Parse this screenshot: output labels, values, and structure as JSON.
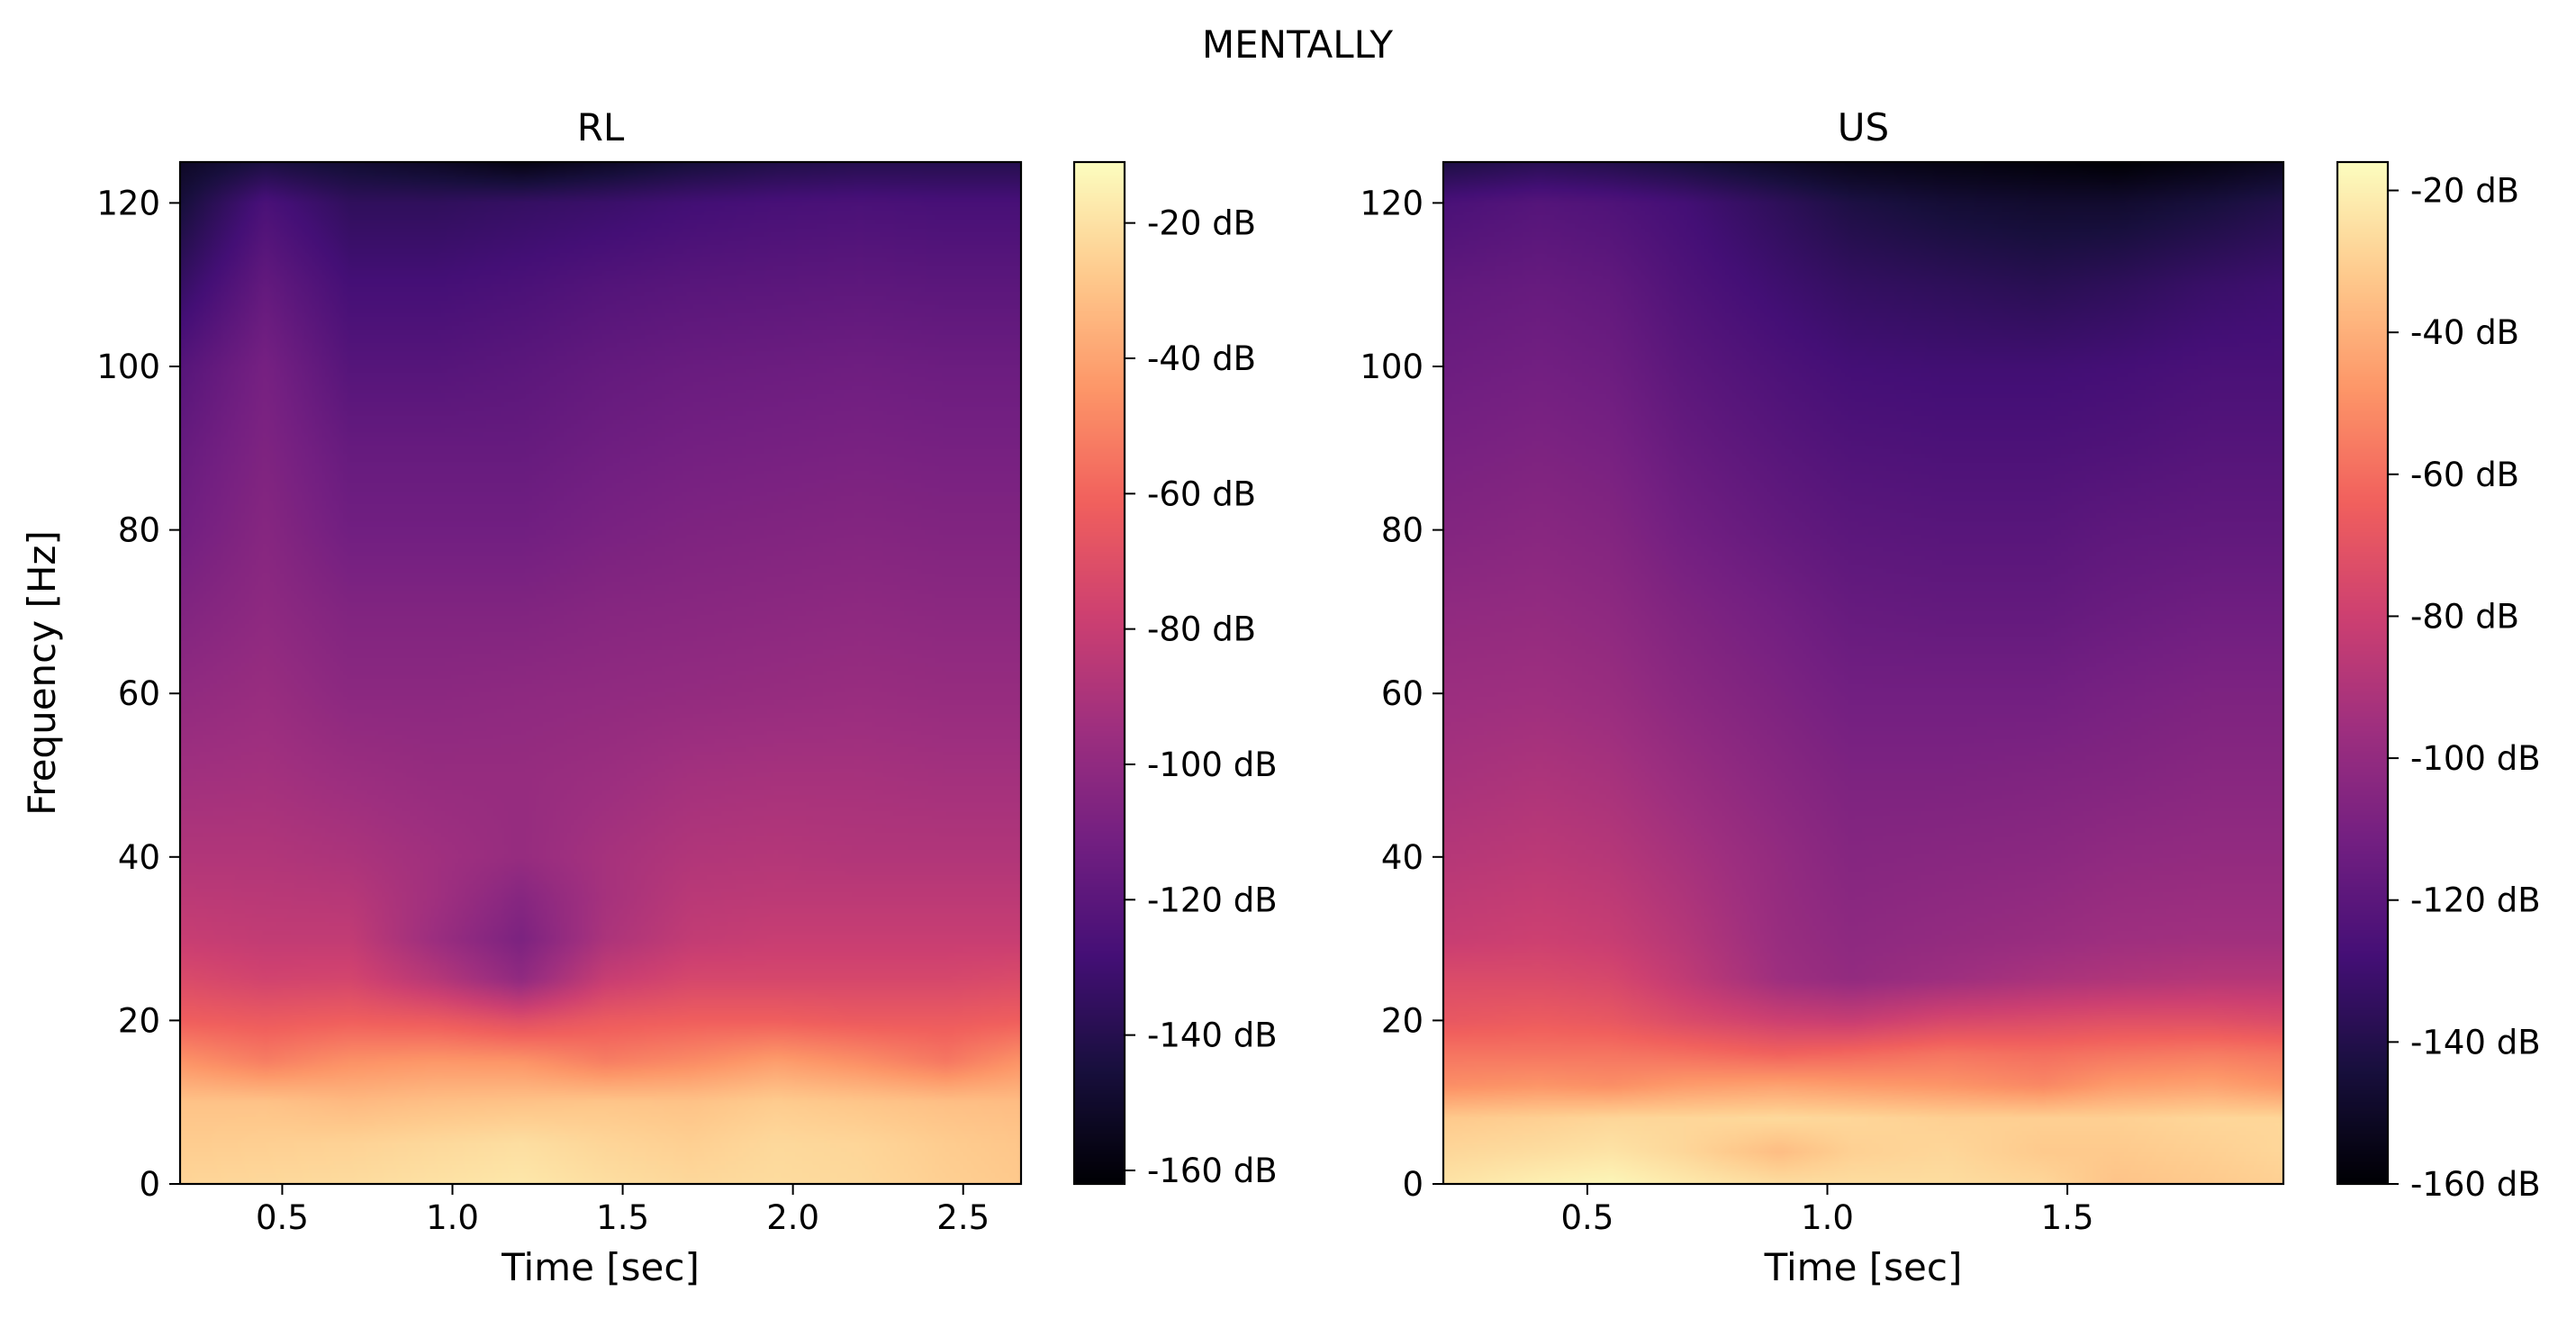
{
  "figure": {
    "suptitle": "MENTALLY"
  },
  "colormap": {
    "name": "magma",
    "stops": [
      "#000004",
      "#180f3d",
      "#440f76",
      "#721f81",
      "#9e2f7f",
      "#cd4071",
      "#f1605d",
      "#fd9668",
      "#feca8d",
      "#fcfdbf"
    ]
  },
  "chart_data": [
    {
      "type": "heatmap",
      "title": "RL",
      "xlabel": "Time [sec]",
      "ylabel": "Frequency [Hz]",
      "xlim": [
        0.2,
        2.67
      ],
      "ylim": [
        0,
        125
      ],
      "xticks": [
        0.5,
        1.0,
        1.5,
        2.0,
        2.5
      ],
      "xtick_labels": [
        "0.5",
        "1.0",
        "1.5",
        "2.0",
        "2.5"
      ],
      "yticks": [
        0,
        20,
        40,
        60,
        80,
        100,
        120
      ],
      "ytick_labels": [
        "0",
        "20",
        "40",
        "60",
        "80",
        "100",
        "120"
      ],
      "colorbar": {
        "vmin": -162,
        "vmax": -11,
        "ticks": [
          -20,
          -40,
          -60,
          -80,
          -100,
          -120,
          -140,
          -160
        ],
        "tick_labels": [
          "-20 dB",
          "-40 dB",
          "-60 dB",
          "-80 dB",
          "-100 dB",
          "-120 dB",
          "-140 dB",
          "-160 dB"
        ]
      },
      "time_bins": [
        0.2,
        0.45,
        0.7,
        0.95,
        1.2,
        1.45,
        1.7,
        1.95,
        2.2,
        2.45,
        2.67
      ],
      "freq_bins": [
        0,
        5,
        10,
        15,
        20,
        25,
        30,
        35,
        40,
        50,
        60,
        70,
        80,
        90,
        100,
        110,
        120,
        125
      ],
      "power_db": [
        [
          -24,
          -23,
          -22,
          -20,
          -18,
          -21,
          -23,
          -22,
          -23,
          -26,
          -28
        ],
        [
          -27,
          -26,
          -25,
          -23,
          -21,
          -24,
          -26,
          -23,
          -24,
          -27,
          -29
        ],
        [
          -30,
          -30,
          -33,
          -31,
          -30,
          -29,
          -30,
          -27,
          -29,
          -31,
          -32
        ],
        [
          -45,
          -52,
          -46,
          -44,
          -45,
          -52,
          -48,
          -42,
          -47,
          -54,
          -45
        ],
        [
          -62,
          -64,
          -62,
          -64,
          -70,
          -64,
          -62,
          -62,
          -64,
          -64,
          -62
        ],
        [
          -72,
          -76,
          -75,
          -86,
          -100,
          -80,
          -74,
          -74,
          -74,
          -74,
          -72
        ],
        [
          -80,
          -82,
          -82,
          -96,
          -108,
          -90,
          -82,
          -80,
          -80,
          -80,
          -80
        ],
        [
          -84,
          -85,
          -86,
          -94,
          -104,
          -92,
          -85,
          -84,
          -84,
          -84,
          -84
        ],
        [
          -88,
          -88,
          -90,
          -94,
          -98,
          -92,
          -88,
          -87,
          -88,
          -88,
          -88
        ],
        [
          -94,
          -93,
          -96,
          -98,
          -98,
          -96,
          -93,
          -92,
          -92,
          -93,
          -93
        ],
        [
          -100,
          -97,
          -102,
          -102,
          -101,
          -100,
          -99,
          -98,
          -97,
          -98,
          -98
        ],
        [
          -106,
          -101,
          -106,
          -106,
          -106,
          -104,
          -103,
          -102,
          -101,
          -102,
          -102
        ],
        [
          -112,
          -104,
          -112,
          -112,
          -112,
          -109,
          -107,
          -106,
          -105,
          -106,
          -106
        ],
        [
          -116,
          -107,
          -116,
          -116,
          -116,
          -113,
          -111,
          -110,
          -109,
          -110,
          -110
        ],
        [
          -122,
          -110,
          -122,
          -122,
          -120,
          -117,
          -115,
          -114,
          -113,
          -114,
          -114
        ],
        [
          -134,
          -117,
          -128,
          -128,
          -126,
          -123,
          -121,
          -120,
          -119,
          -120,
          -120
        ],
        [
          -146,
          -126,
          -136,
          -136,
          -134,
          -132,
          -129,
          -127,
          -126,
          -127,
          -127
        ],
        [
          -152,
          -144,
          -148,
          -152,
          -158,
          -152,
          -146,
          -142,
          -140,
          -140,
          -140
        ]
      ]
    },
    {
      "type": "heatmap",
      "title": "US",
      "xlabel": "Time [sec]",
      "ylabel": "",
      "xlim": [
        0.2,
        1.95
      ],
      "ylim": [
        0,
        125
      ],
      "xticks": [
        0.5,
        1.0,
        1.5
      ],
      "xtick_labels": [
        "0.5",
        "1.0",
        "1.5"
      ],
      "yticks": [
        0,
        20,
        40,
        60,
        80,
        100,
        120
      ],
      "ytick_labels": [
        "0",
        "20",
        "40",
        "60",
        "80",
        "100",
        "120"
      ],
      "colorbar": {
        "vmin": -160,
        "vmax": -16,
        "ticks": [
          -20,
          -40,
          -60,
          -80,
          -100,
          -120,
          -140,
          -160
        ],
        "tick_labels": [
          "-20 dB",
          "-40 dB",
          "-60 dB",
          "-80 dB",
          "-100 dB",
          "-120 dB",
          "-140 dB",
          "-160 dB"
        ]
      },
      "time_bins": [
        0.2,
        0.4,
        0.55,
        0.7,
        0.9,
        1.05,
        1.25,
        1.45,
        1.6,
        1.8,
        1.95
      ],
      "freq_bins": [
        0,
        4,
        8,
        12,
        16,
        20,
        25,
        30,
        40,
        50,
        60,
        70,
        80,
        90,
        100,
        110,
        120,
        125
      ],
      "power_db": [
        [
          -24,
          -20,
          -18,
          -22,
          -26,
          -26,
          -26,
          -28,
          -34,
          -32,
          -30
        ],
        [
          -28,
          -26,
          -24,
          -28,
          -36,
          -30,
          -28,
          -32,
          -32,
          -30,
          -28
        ],
        [
          -32,
          -30,
          -28,
          -28,
          -27,
          -28,
          -30,
          -30,
          -30,
          -28,
          -28
        ],
        [
          -50,
          -48,
          -50,
          -46,
          -44,
          -46,
          -48,
          -52,
          -46,
          -44,
          -48
        ],
        [
          -58,
          -58,
          -58,
          -60,
          -64,
          -62,
          -58,
          -60,
          -58,
          -56,
          -58
        ],
        [
          -68,
          -66,
          -68,
          -74,
          -80,
          -82,
          -76,
          -74,
          -72,
          -72,
          -74
        ],
        [
          -74,
          -74,
          -76,
          -84,
          -96,
          -100,
          -96,
          -92,
          -90,
          -88,
          -88
        ],
        [
          -82,
          -80,
          -82,
          -88,
          -98,
          -102,
          -100,
          -98,
          -96,
          -95,
          -95
        ],
        [
          -88,
          -86,
          -88,
          -93,
          -100,
          -105,
          -104,
          -103,
          -101,
          -100,
          -100
        ],
        [
          -93,
          -91,
          -93,
          -98,
          -104,
          -108,
          -108,
          -107,
          -106,
          -104,
          -104
        ],
        [
          -97,
          -96,
          -98,
          -103,
          -108,
          -112,
          -112,
          -112,
          -110,
          -108,
          -108
        ],
        [
          -101,
          -100,
          -102,
          -107,
          -112,
          -116,
          -117,
          -117,
          -115,
          -113,
          -113
        ],
        [
          -106,
          -104,
          -106,
          -112,
          -117,
          -120,
          -121,
          -121,
          -119,
          -118,
          -118
        ],
        [
          -110,
          -108,
          -110,
          -116,
          -121,
          -124,
          -125,
          -125,
          -124,
          -122,
          -122
        ],
        [
          -114,
          -112,
          -114,
          -120,
          -125,
          -128,
          -129,
          -129,
          -128,
          -126,
          -126
        ],
        [
          -118,
          -116,
          -118,
          -124,
          -130,
          -134,
          -136,
          -138,
          -136,
          -132,
          -130
        ],
        [
          -126,
          -122,
          -124,
          -128,
          -136,
          -142,
          -146,
          -148,
          -148,
          -144,
          -140
        ],
        [
          -142,
          -138,
          -140,
          -144,
          -150,
          -154,
          -156,
          -158,
          -160,
          -156,
          -152
        ]
      ]
    }
  ]
}
